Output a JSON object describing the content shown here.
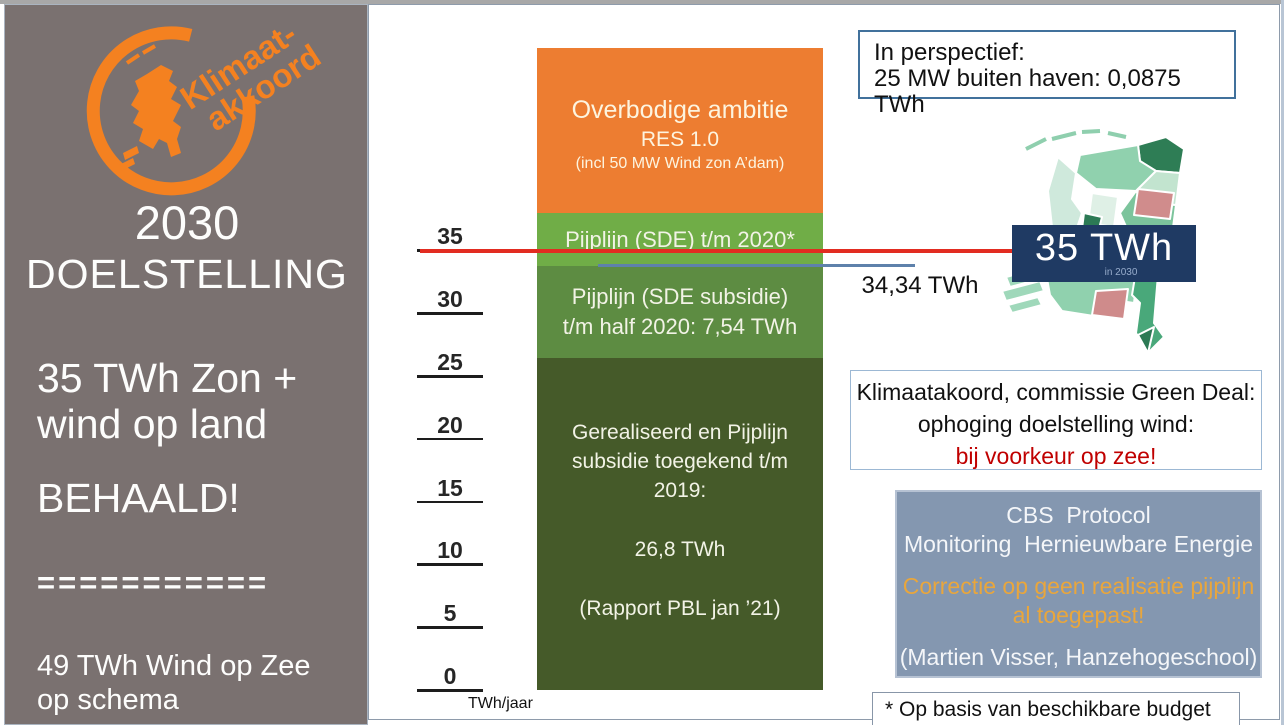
{
  "sidebar": {
    "logo": {
      "line1": "Klimaat-",
      "line2": "akkoord"
    },
    "title_line1": "2030",
    "title_line2": "DOELSTELLING",
    "subtitle_line1": "35 TWh Zon +",
    "subtitle_line2": "wind op land",
    "status": "BEHAALD!",
    "divider": "===========",
    "footer_line1": "49 TWh Wind op Zee",
    "footer_line2": "op schema"
  },
  "chart": {
    "axis": {
      "ticks": [
        35,
        30,
        25,
        20,
        15,
        10,
        5,
        0
      ],
      "unit_label": "TWh/jaar"
    },
    "bar": {
      "orange": {
        "line1": "Overbodige ambitie",
        "line2": "RES 1.0",
        "line3": "(incl 50 MW Wind zon A’dam)"
      },
      "light_green": {
        "line1": "Pijplijn  (SDE) t/m 2020*"
      },
      "mid_green": {
        "line1": "Pijplijn (SDE subsidie)",
        "line2": "t/m half 2020: 7,54 TWh"
      },
      "dark_green": {
        "line1": "Gerealiseerd en Pijplijn",
        "line2": "subsidie toegekend t/m",
        "line3": "2019:",
        "value": "26,8 TWh",
        "source": "(Rapport PBL jan ’21)"
      }
    },
    "marker_3434": "34,34 TWh"
  },
  "target_badge": {
    "value": "35 TWh",
    "sub": "in 2030"
  },
  "boxes": {
    "perspective": {
      "line1": "In perspectief:",
      "line2": "25 MW buiten haven: 0,0875 TWh"
    },
    "green_deal": {
      "line1": "Klimaatakoord, commissie Green Deal:",
      "line2": "ophoging doelstelling wind:",
      "line3": "bij voorkeur op zee!"
    },
    "cbs": {
      "line1": "CBS  Protocol",
      "line2": "Monitoring  Hernieuwbare Energie",
      "line3": "Correctie op geen realisatie pijplijn",
      "line4": "al toegepast!",
      "line5": "(Martien Visser, Hanzehogeschool)"
    },
    "footnote": "* Op basis van beschikbare budget"
  },
  "colors": {
    "sidebar_gray": "#7a7170",
    "logo_orange": "#f48120",
    "bar_orange": "#ed7d31",
    "bar_light_green": "#70ad47",
    "bar_mid_green": "#5d8c42",
    "bar_dark_green": "#455a29",
    "red_line": "#e22c21",
    "blue_line": "#5e81ab",
    "badge_navy": "#1f3a63",
    "cbs_bg": "#8497b0",
    "cbs_amber": "#e9a63c",
    "warn_red": "#c00000"
  },
  "chart_data": {
    "type": "bar",
    "stacked": true,
    "categories": [
      "Zon + wind op land"
    ],
    "series": [
      {
        "name": "Gerealiseerd en Pijplijn subsidie toegekend t/m 2019 (Rapport PBL jan ’21)",
        "values": [
          26.8
        ],
        "color": "#455a29"
      },
      {
        "name": "Pijplijn (SDE subsidie) t/m half 2020",
        "values": [
          7.54
        ],
        "color": "#5d8c42"
      },
      {
        "name": "Pijplijn (SDE) t/m 2020*",
        "values": [
          4.2
        ],
        "color": "#70ad47"
      },
      {
        "name": "Overbodige ambitie RES 1.0 (incl 50 MW Wind zon A’dam)",
        "values": [
          13.2
        ],
        "color": "#ed7d31"
      }
    ],
    "ylabel": "TWh/jaar",
    "ylim": [
      0,
      52
    ],
    "yticks": [
      0,
      5,
      10,
      15,
      20,
      25,
      30,
      35
    ],
    "annotations": [
      {
        "label": "35 TWh in 2030 (doelstelling)",
        "y": 35,
        "style": "red-line"
      },
      {
        "label": "34,34 TWh",
        "y": 34.34,
        "style": "blue-line"
      }
    ],
    "legend_position": "none",
    "grid": false
  }
}
